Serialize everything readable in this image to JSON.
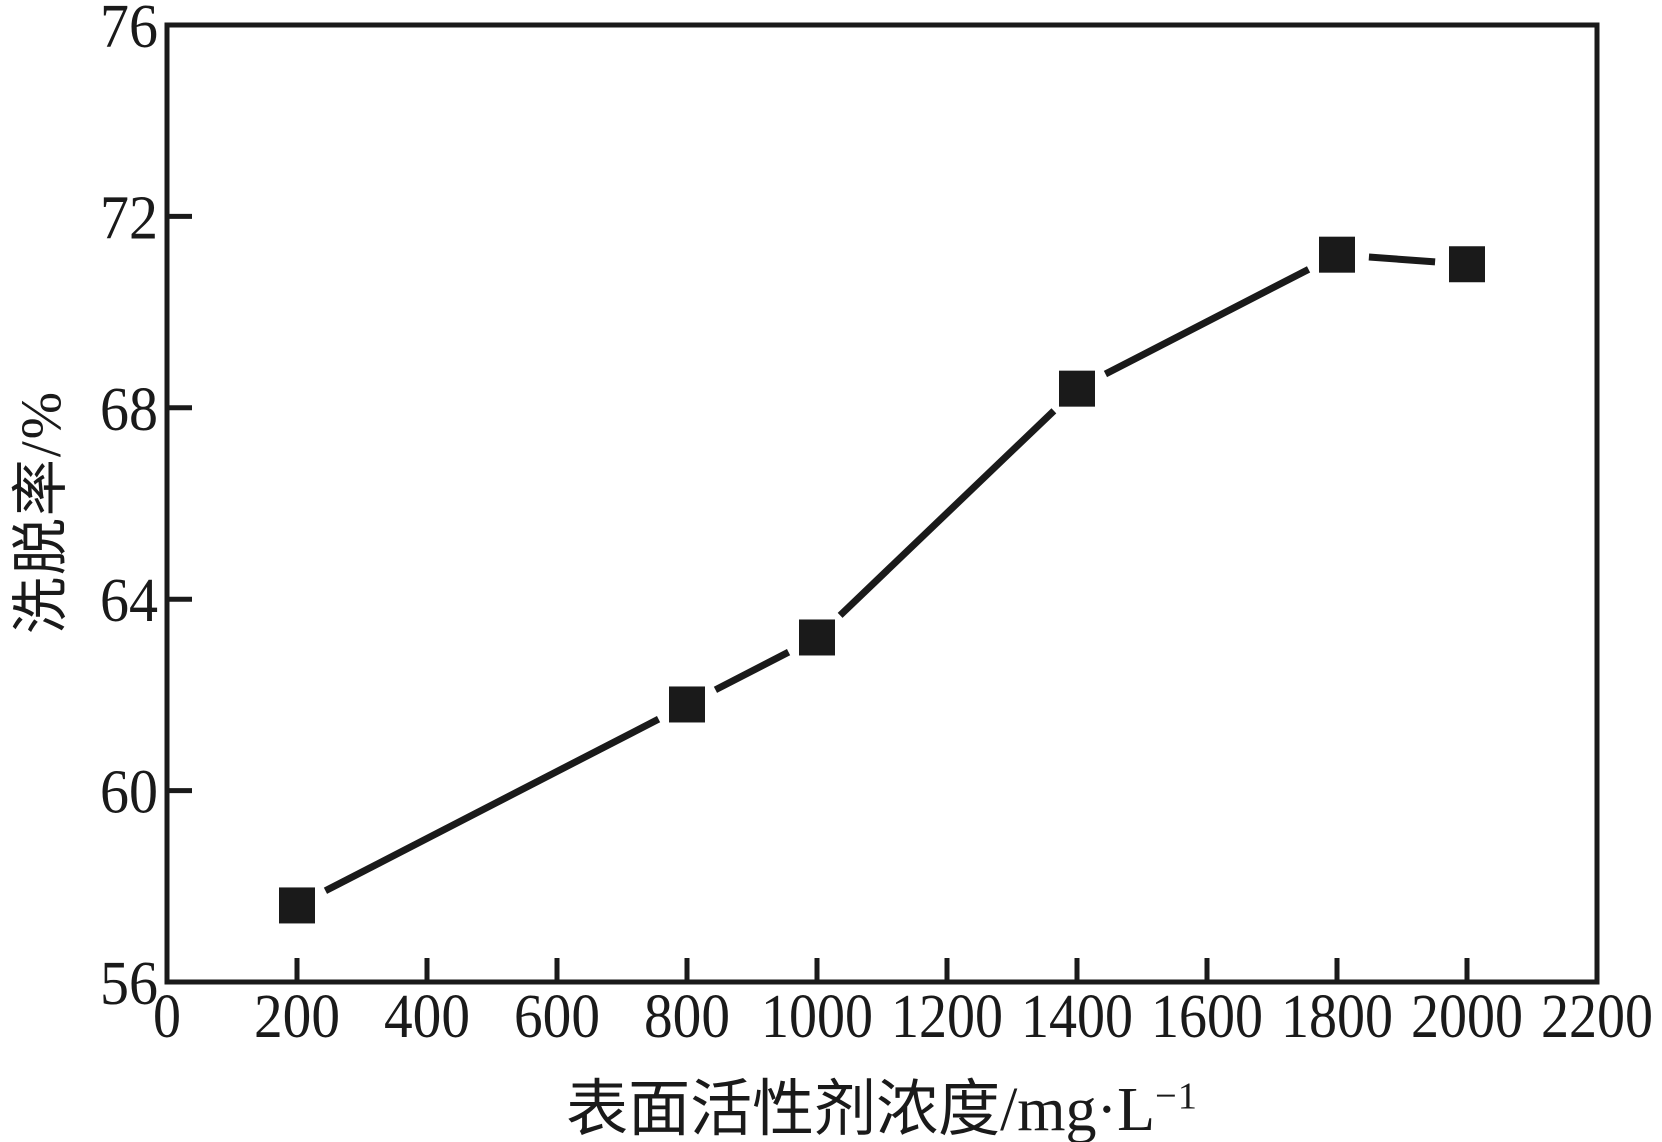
{
  "colors": {
    "ink": "#1a1a1a",
    "background": "#ffffff"
  },
  "chart_data": {
    "type": "line",
    "title": "",
    "xlabel_prefix": "表面活性剂浓度/mg·L",
    "xlabel_sup": "−1",
    "ylabel": "洗脱率/%",
    "xlim": [
      0,
      2200
    ],
    "ylim": [
      56,
      76
    ],
    "x_ticks": [
      0,
      200,
      400,
      600,
      800,
      1000,
      1200,
      1400,
      1600,
      1800,
      2000,
      2200
    ],
    "y_ticks": [
      56,
      60,
      64,
      68,
      72,
      76
    ],
    "grid": false,
    "legend": null,
    "marker": "square",
    "series": [
      {
        "name": "洗脱率",
        "x": [
          200,
          800,
          1000,
          1400,
          1800,
          2000
        ],
        "y": [
          57.6,
          61.8,
          63.2,
          68.4,
          71.2,
          71.0
        ]
      }
    ]
  }
}
